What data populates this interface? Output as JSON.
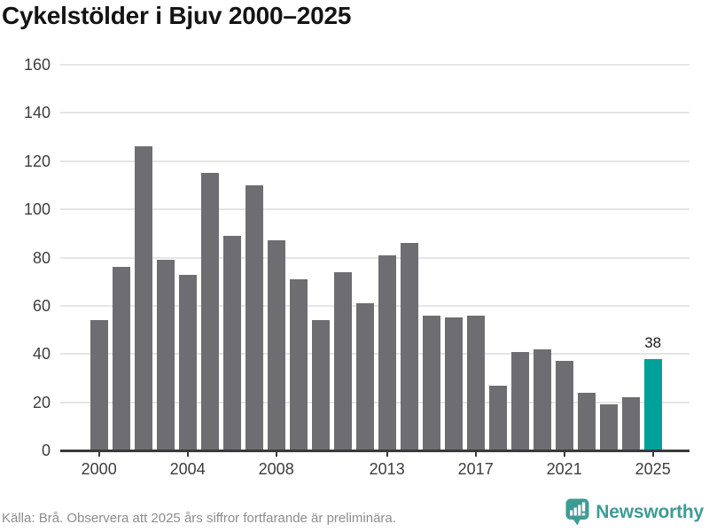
{
  "title": "Cykelstölder i Bjuv 2000–2025",
  "footer": {
    "source_note": "Källa: Brå. Observera att 2025 års siffror fortfarande är preliminära."
  },
  "branding": {
    "logo_text": "Newsworthy",
    "logo_color": "#3e9b94",
    "logo_icon": "bar-chart-speech-bubble-icon"
  },
  "chart_data": {
    "type": "bar",
    "title": "Cykelstölder i Bjuv 2000–2025",
    "categories": [
      2000,
      2001,
      2002,
      2003,
      2004,
      2005,
      2006,
      2007,
      2008,
      2009,
      2010,
      2011,
      2012,
      2013,
      2014,
      2015,
      2016,
      2017,
      2018,
      2019,
      2020,
      2021,
      2022,
      2023,
      2024,
      2025
    ],
    "values": [
      54,
      76,
      126,
      79,
      73,
      115,
      89,
      110,
      87,
      71,
      54,
      74,
      61,
      81,
      86,
      56,
      55,
      56,
      27,
      41,
      42,
      37,
      24,
      19,
      22,
      38
    ],
    "highlight_index": 25,
    "highlight_value_label": "38",
    "bar_color": "#6e6e72",
    "highlight_color": "#00a19a",
    "xlabel": "",
    "ylabel": "",
    "ylim": [
      0,
      160
    ],
    "yticks": [
      0,
      20,
      40,
      60,
      80,
      100,
      120,
      140,
      160
    ],
    "xtick_years": [
      2000,
      2004,
      2008,
      2013,
      2017,
      2021,
      2025
    ],
    "grid": "horizontal",
    "legend": "none"
  }
}
